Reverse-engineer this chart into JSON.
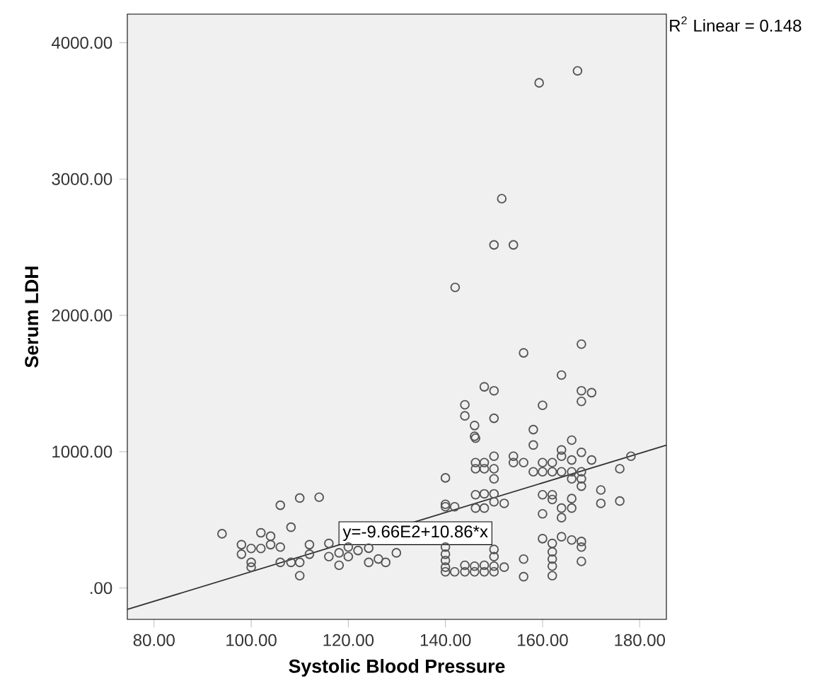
{
  "chart_data": {
    "type": "scatter",
    "xlabel": "Systolic Blood Pressure",
    "ylabel": "Serum LDH",
    "xlim": [
      74.5,
      185.5
    ],
    "ylim": [
      -230,
      4210
    ],
    "xticks": [
      {
        "value": 80,
        "label": "80.00"
      },
      {
        "value": 100,
        "label": "100.00"
      },
      {
        "value": 120,
        "label": "120.00"
      },
      {
        "value": 140,
        "label": "140.00"
      },
      {
        "value": 160,
        "label": "160.00"
      },
      {
        "value": 180,
        "label": "180.00"
      }
    ],
    "yticks": [
      {
        "value": 0,
        "label": ".00"
      },
      {
        "value": 1000,
        "label": "1000.00"
      },
      {
        "value": 2000,
        "label": "2000.00"
      },
      {
        "value": 3000,
        "label": "3000.00"
      },
      {
        "value": 4000,
        "label": "4000.00"
      }
    ],
    "grid": false,
    "annotations": [
      {
        "text": "y=-9.66E2+10.86*x",
        "x": 118,
        "y": 315
      },
      "R$^{2}$ Linear = 0.148"
    ],
    "series": [
      {
        "marker": "circle",
        "color": "#555555",
        "x": [
          94,
          98,
          98,
          100,
          100,
          100,
          102,
          102,
          104,
          104,
          106,
          106,
          106,
          108.2,
          108.2,
          110,
          110,
          110,
          112,
          112,
          114,
          116,
          116,
          118.1,
          118.1,
          120,
          120,
          122,
          124.2,
          124.2,
          126.2,
          127.7,
          146.2,
          140,
          146.2,
          146.2,
          148,
          148,
          150,
          150,
          150,
          154,
          154,
          156.1,
          158.1,
          158.1,
          160,
          160,
          162,
          162,
          163.9,
          163.9,
          163.9,
          166,
          166,
          166,
          166,
          168,
          168,
          168,
          168,
          170.1,
          175.9,
          178.2,
          140,
          140,
          141.9,
          146.2,
          146.2,
          148,
          148,
          150,
          150,
          152.1,
          160,
          160,
          162,
          162,
          163.9,
          163.9,
          166,
          166,
          172,
          172,
          175.9,
          129.9,
          140,
          140,
          140,
          140,
          140,
          141.9,
          144,
          144,
          146,
          146,
          148,
          148,
          150,
          150,
          150,
          150,
          152.1,
          156.1,
          156.1,
          160,
          162,
          162,
          162,
          162,
          162,
          163.9,
          166,
          168,
          168,
          168,
          150,
          154,
          142,
          156.1,
          168,
          163.9,
          148,
          150,
          144,
          144,
          146,
          146,
          150,
          160,
          168,
          170.1,
          168,
          158.1,
          159.3,
          167.2,
          151.6
        ],
        "values": [
          398,
          318,
          248,
          290,
          188,
          153,
          290,
          405,
          380,
          318,
          607,
          300,
          188,
          446,
          188,
          660,
          188,
          90,
          318,
          248,
          666,
          327,
          230,
          258,
          167,
          300,
          230,
          275,
          292,
          188,
          213,
          188,
          1099,
          808,
          920,
          875,
          920,
          875,
          967,
          875,
          801,
          967,
          920,
          920,
          1049,
          853,
          920,
          853,
          920,
          853,
          1013,
          967,
          853,
          1085,
          939,
          853,
          801,
          995,
          853,
          801,
          747,
          939,
          875,
          967,
          614,
          596,
          596,
          684,
          586,
          691,
          586,
          691,
          632,
          621,
          684,
          544,
          684,
          649,
          586,
          516,
          656,
          586,
          719,
          621,
          638,
          258,
          300,
          248,
          202,
          153,
          119,
          119,
          167,
          119,
          119,
          160,
          167,
          119,
          283,
          230,
          160,
          119,
          153,
          212,
          83,
          362,
          327,
          265,
          212,
          160,
          90,
          376,
          352,
          341,
          300,
          195,
          2517,
          2517,
          2205,
          1725,
          1789,
          1562,
          1476,
          1447,
          1344,
          1263,
          1192,
          1113,
          1245,
          1340,
          1447,
          1433,
          1369,
          1162,
          3706,
          3794,
          2856
        ]
      },
      {
        "type": "line",
        "marker": "none",
        "color": "#333333",
        "x": [
          74.5,
          185.5
        ],
        "values": [
          -157,
          1048
        ]
      }
    ]
  }
}
